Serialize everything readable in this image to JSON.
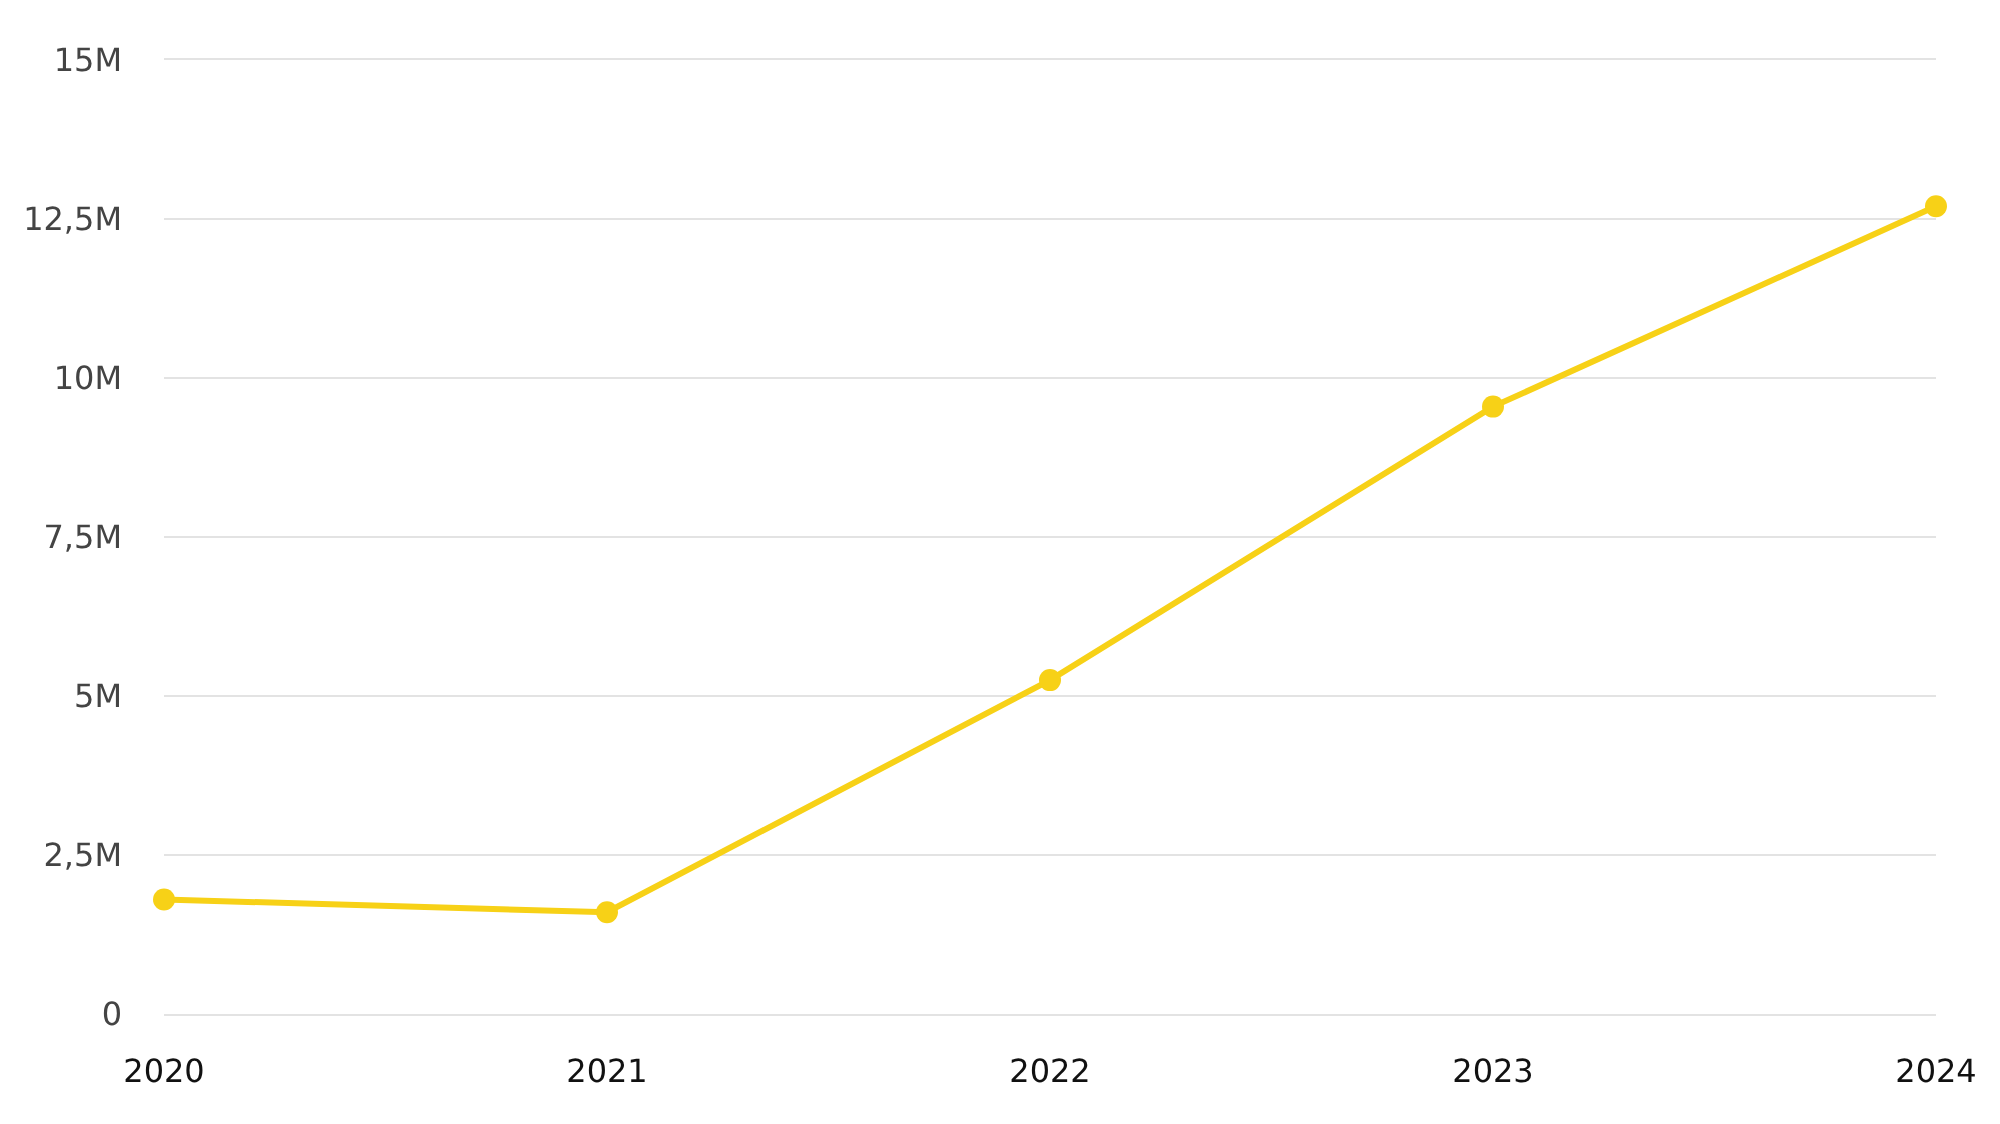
{
  "chart_data": {
    "type": "line",
    "categories": [
      "2020",
      "2021",
      "2022",
      "2023",
      "2024"
    ],
    "series": [
      {
        "color": "#f7d117",
        "values": [
          1800000,
          1600000,
          5250000,
          9550000,
          12700000
        ]
      }
    ],
    "ylim": [
      0,
      15000000
    ],
    "yticks": [
      0,
      {
        "value": 2500000,
        "label": "2,5M"
      },
      {
        "value": 5000000,
        "label": "5M"
      },
      {
        "value": 7500000,
        "label": "7,5M"
      },
      {
        "value": 10000000,
        "label": "10M"
      },
      {
        "value": 12500000,
        "label": "12,5M"
      },
      {
        "value": 15000000,
        "label": "15M"
      }
    ],
    "grid": "y",
    "marker": "circle",
    "line_style": "solid"
  }
}
